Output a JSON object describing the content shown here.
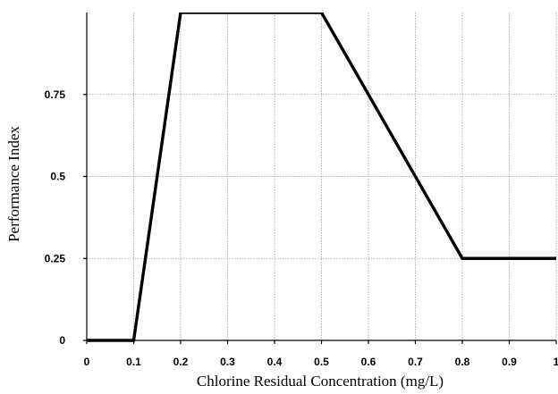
{
  "chart_data": {
    "type": "line",
    "title": "",
    "xlabel": "Chlorine Residual Concentration (mg/L)",
    "ylabel": "Performance Index",
    "xlim": [
      0,
      1
    ],
    "ylim": [
      0,
      1
    ],
    "x_ticks": [
      "0",
      "0.1",
      "0.2",
      "0.3",
      "0.4",
      "0.5",
      "0.6",
      "0.7",
      "0.8",
      "0.9",
      "1"
    ],
    "y_ticks": [
      "0",
      "0.25",
      "0.5",
      "0.75"
    ],
    "grid": true,
    "grid_style": "dotted",
    "series": [
      {
        "points": [
          [
            0,
            0
          ],
          [
            0.1,
            0
          ],
          [
            0.2,
            1
          ],
          [
            0.5,
            1
          ],
          [
            0.8,
            0.25
          ],
          [
            1,
            0.25
          ]
        ]
      }
    ],
    "colors": {
      "line": "#000000",
      "grid": "#9a9a9a",
      "background": "#ffffff"
    }
  }
}
